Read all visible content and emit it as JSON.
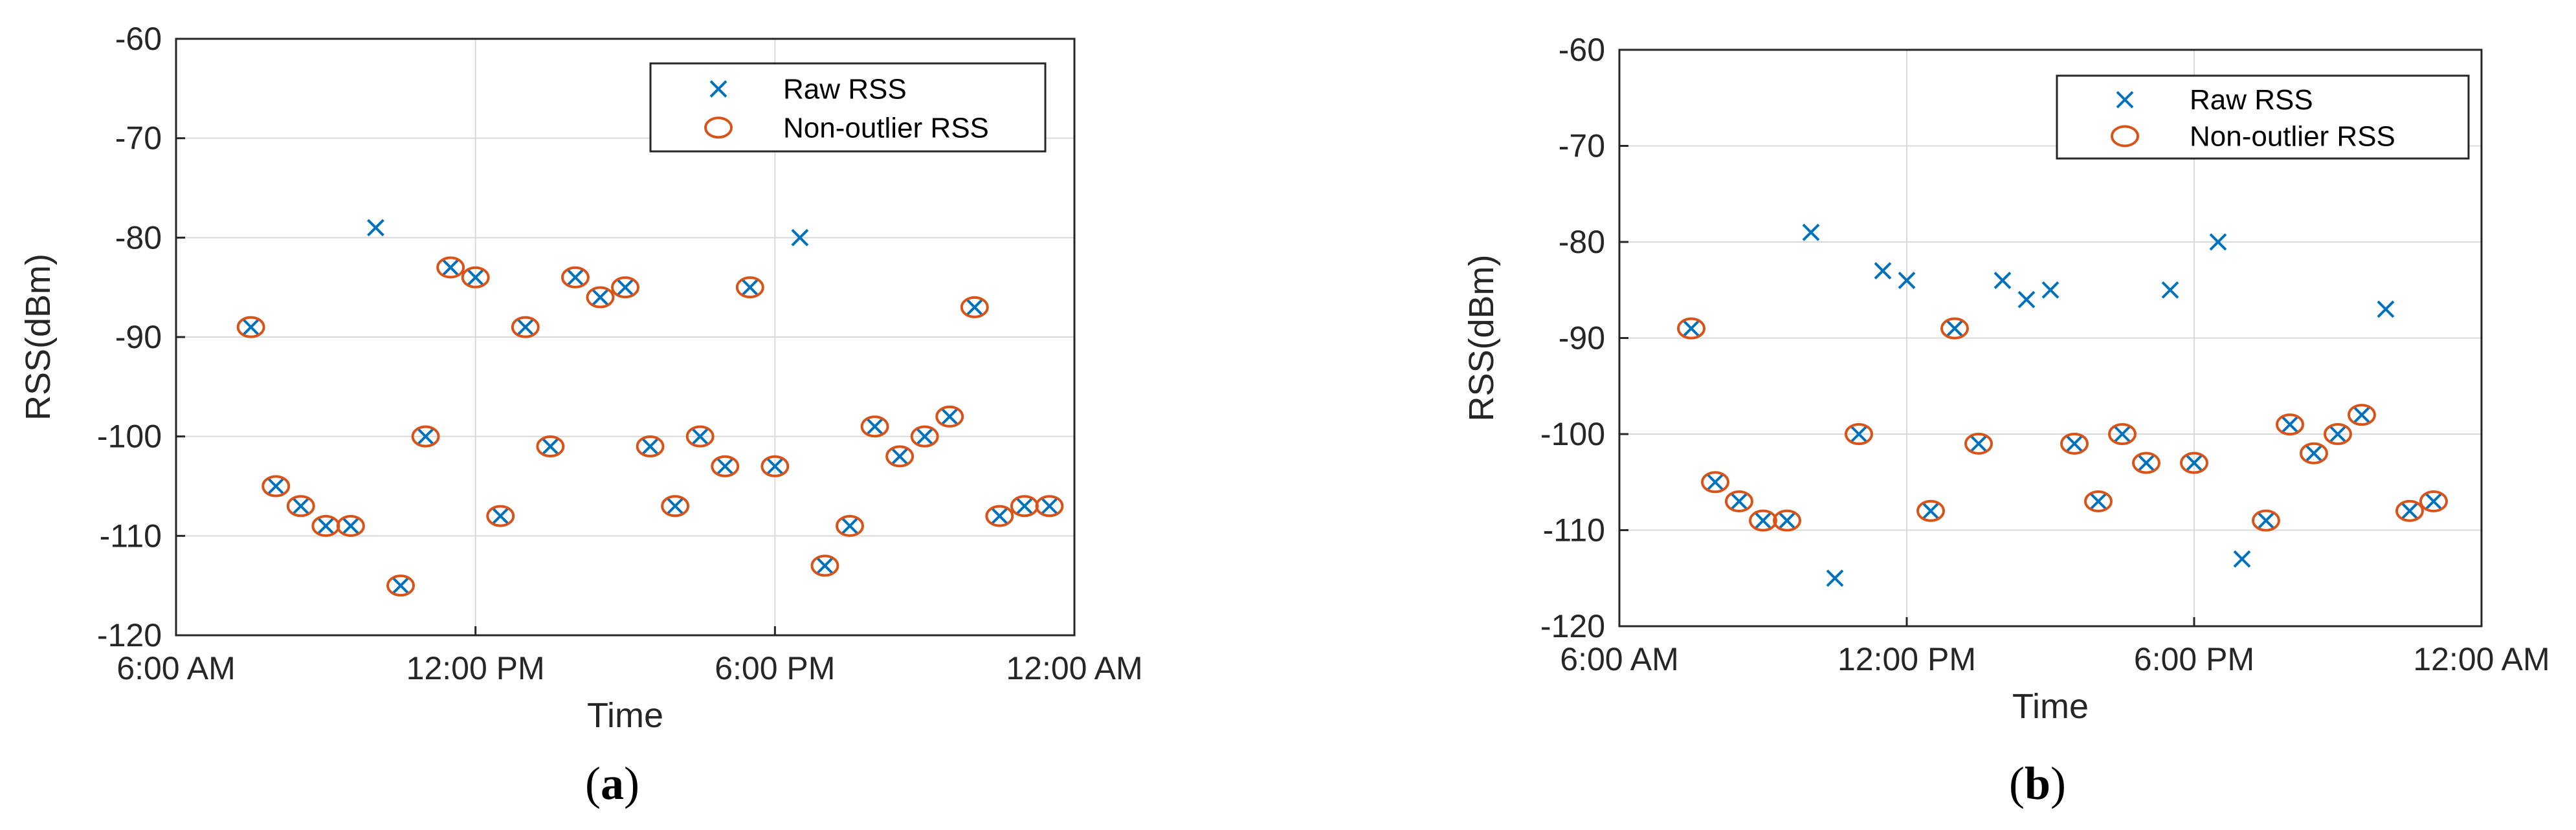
{
  "colors": {
    "raw": "#0072BD",
    "nonoutlier": "#D95319",
    "grid": "#d9d9d9",
    "axis": "#262626"
  },
  "chart_data": [
    {
      "type": "scatter",
      "panel_label": "a",
      "xlabel": "Time",
      "ylabel": "RSS(dBm)",
      "xlim": [
        6,
        24
      ],
      "ylim": [
        -120,
        -60
      ],
      "xticks": [
        6,
        12,
        18,
        24
      ],
      "xtick_labels": [
        "6:00 AM",
        "12:00 PM",
        "6:00 PM",
        "12:00 AM"
      ],
      "yticks": [
        -60,
        -70,
        -80,
        -90,
        -100,
        -110,
        -120
      ],
      "grid": true,
      "legend_position": "top-right",
      "series": [
        {
          "name": "Raw RSS",
          "marker": "x",
          "x": [
            7.5,
            8.0,
            8.5,
            9.0,
            9.5,
            10.0,
            10.5,
            11.0,
            11.5,
            12.0,
            12.5,
            13.0,
            13.5,
            14.0,
            14.5,
            15.0,
            15.5,
            16.0,
            16.5,
            17.0,
            17.5,
            18.0,
            18.5,
            19.0,
            19.5,
            20.0,
            20.5,
            21.0,
            21.5,
            22.0,
            22.5,
            23.0,
            23.5
          ],
          "y": [
            -89,
            -105,
            -107,
            -109,
            -109,
            -79,
            -115,
            -100,
            -83,
            -84,
            -108,
            -89,
            -101,
            -84,
            -86,
            -85,
            -101,
            -107,
            -100,
            -103,
            -85,
            -103,
            -80,
            -113,
            -109,
            -99,
            -102,
            -100,
            -98,
            -87,
            -108,
            -107,
            -107
          ]
        },
        {
          "name": "Non-outlier RSS",
          "marker": "o",
          "x": [
            7.5,
            8.0,
            8.5,
            9.0,
            9.5,
            10.5,
            11.0,
            11.5,
            12.0,
            12.5,
            13.0,
            13.5,
            14.0,
            14.5,
            15.0,
            15.5,
            16.0,
            16.5,
            17.0,
            17.5,
            18.0,
            19.0,
            19.5,
            20.0,
            20.5,
            21.0,
            21.5,
            22.0,
            22.5,
            23.0,
            23.5
          ],
          "y": [
            -89,
            -105,
            -107,
            -109,
            -109,
            -115,
            -100,
            -83,
            -84,
            -108,
            -89,
            -101,
            -84,
            -86,
            -85,
            -101,
            -107,
            -100,
            -103,
            -85,
            -103,
            -113,
            -109,
            -99,
            -102,
            -100,
            -98,
            -87,
            -108,
            -107,
            -107
          ]
        }
      ]
    },
    {
      "type": "scatter",
      "panel_label": "b",
      "xlabel": "Time",
      "ylabel": "RSS(dBm)",
      "xlim": [
        6,
        24
      ],
      "ylim": [
        -120,
        -60
      ],
      "xticks": [
        6,
        12,
        18,
        24
      ],
      "xtick_labels": [
        "6:00 AM",
        "12:00 PM",
        "6:00 PM",
        "12:00 AM"
      ],
      "yticks": [
        -60,
        -70,
        -80,
        -90,
        -100,
        -110,
        -120
      ],
      "grid": true,
      "legend_position": "top-right",
      "series": [
        {
          "name": "Raw RSS",
          "marker": "x",
          "x": [
            7.5,
            8.0,
            8.5,
            9.0,
            9.5,
            10.0,
            10.5,
            11.0,
            11.5,
            12.0,
            12.5,
            13.0,
            13.5,
            14.0,
            14.5,
            15.0,
            15.5,
            16.0,
            16.5,
            17.0,
            17.5,
            18.0,
            18.5,
            19.0,
            19.5,
            20.0,
            20.5,
            21.0,
            21.5,
            22.0,
            22.5,
            23.0
          ],
          "y": [
            -89,
            -105,
            -107,
            -109,
            -109,
            -79,
            -115,
            -100,
            -83,
            -84,
            -108,
            -89,
            -101,
            -84,
            -86,
            -85,
            -101,
            -107,
            -100,
            -103,
            -85,
            -103,
            -80,
            -113,
            -109,
            -99,
            -102,
            -100,
            -98,
            -87,
            -108,
            -107
          ]
        },
        {
          "name": "Non-outlier RSS",
          "marker": "o",
          "x": [
            7.5,
            8.0,
            8.5,
            9.0,
            9.5,
            11.0,
            12.5,
            13.0,
            13.5,
            15.5,
            16.0,
            16.5,
            17.0,
            18.0,
            19.5,
            20.0,
            20.5,
            21.0,
            21.5,
            22.5,
            23.0
          ],
          "y": [
            -89,
            -105,
            -107,
            -109,
            -109,
            -100,
            -108,
            -89,
            -101,
            -101,
            -107,
            -100,
            -103,
            -103,
            -109,
            -99,
            -102,
            -100,
            -98,
            -108,
            -107
          ]
        }
      ]
    }
  ]
}
